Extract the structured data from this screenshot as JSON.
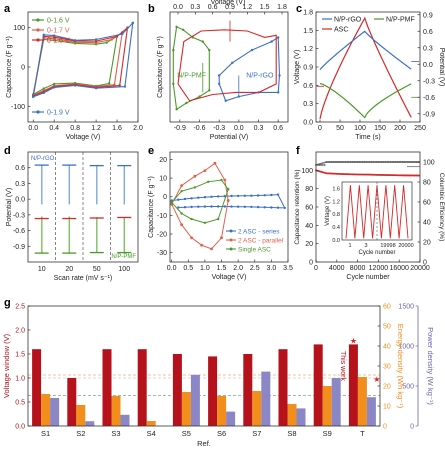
{
  "chart_data": [
    {
      "panel": "a",
      "type": "line",
      "xlabel": "Voltage (V)",
      "ylabel": "Capacitance (F g⁻¹)",
      "xlim": [
        -0.1,
        2.0
      ],
      "ylim": [
        -140,
        140
      ],
      "xticks": [
        0.0,
        0.4,
        0.8,
        1.2,
        1.6,
        2.0
      ],
      "yticks": [
        -100,
        0,
        100
      ],
      "legend": "top-left",
      "series": [
        {
          "name": "0-1.6 V",
          "color": "#4a9a2a",
          "vmax": 1.6,
          "upper": [
            [
              0,
              -70
            ],
            [
              0.2,
              -55
            ],
            [
              0.4,
              -43
            ],
            [
              0.8,
              -41
            ],
            [
              1.2,
              -48
            ],
            [
              1.45,
              -42
            ],
            [
              1.6,
              78
            ]
          ],
          "lower": [
            [
              1.6,
              78
            ],
            [
              1.4,
              62
            ],
            [
              1.2,
              58
            ],
            [
              0.8,
              60
            ],
            [
              0.4,
              68
            ],
            [
              0.2,
              70
            ],
            [
              0,
              -70
            ]
          ]
        },
        {
          "name": "0-1.7 V",
          "color": "#e0604a",
          "vmax": 1.7,
          "upper": [
            [
              0,
              -72
            ],
            [
              0.2,
              -60
            ],
            [
              0.4,
              -48
            ],
            [
              0.8,
              -43
            ],
            [
              1.2,
              -50
            ],
            [
              1.55,
              -45
            ],
            [
              1.7,
              88
            ]
          ],
          "lower": [
            [
              1.7,
              88
            ],
            [
              1.5,
              70
            ],
            [
              1.2,
              62
            ],
            [
              0.8,
              63
            ],
            [
              0.4,
              72
            ],
            [
              0.2,
              74
            ],
            [
              0,
              -72
            ]
          ]
        },
        {
          "name": "0-1.8 V",
          "color": "#d62828",
          "vmax": 1.8,
          "upper": [
            [
              0,
              -74
            ],
            [
              0.2,
              -63
            ],
            [
              0.4,
              -50
            ],
            [
              0.8,
              -45
            ],
            [
              1.2,
              -52
            ],
            [
              1.65,
              -47
            ],
            [
              1.8,
              100
            ]
          ],
          "lower": [
            [
              1.8,
              100
            ],
            [
              1.6,
              78
            ],
            [
              1.2,
              66
            ],
            [
              0.8,
              66
            ],
            [
              0.4,
              76
            ],
            [
              0.2,
              78
            ],
            [
              0,
              -74
            ]
          ]
        },
        {
          "name": "0-1.9 V",
          "color": "#3b6fc8",
          "vmax": 1.9,
          "upper": [
            [
              0,
              -76
            ],
            [
              0.2,
              -66
            ],
            [
              0.4,
              -52
            ],
            [
              0.8,
              -47
            ],
            [
              1.2,
              -54
            ],
            [
              1.75,
              -50
            ],
            [
              1.9,
              112
            ]
          ],
          "lower": [
            [
              1.9,
              112
            ],
            [
              1.7,
              84
            ],
            [
              1.2,
              70
            ],
            [
              0.8,
              68
            ],
            [
              0.4,
              80
            ],
            [
              0.2,
              82
            ],
            [
              0,
              -76
            ]
          ]
        }
      ]
    },
    {
      "panel": "b",
      "type": "line",
      "xlabel": "Potential (V)",
      "x2label": "Voltage (V)",
      "ylabel": "Capacitance (F g⁻¹)",
      "xlim": [
        -1.05,
        0.75
      ],
      "x2lim": [
        0,
        1.8
      ],
      "xticks": [
        -0.9,
        -0.6,
        -0.3,
        0.0,
        0.3,
        0.6
      ],
      "x2ticks": [
        0.0,
        0.3,
        0.6,
        0.9,
        1.2,
        1.5,
        1.8
      ],
      "annotations": [
        "N/P-PMF",
        "N/P-rGO"
      ],
      "series": [
        {
          "name": "N/P-PMF",
          "color": "#4a9a2a"
        },
        {
          "name": "N/P-rGO",
          "color": "#3b6fc8"
        },
        {
          "name": "ASC",
          "color": "#d62828"
        }
      ]
    },
    {
      "panel": "c",
      "type": "line",
      "xlabel": "Time (s)",
      "ylabel": "Voltage (V)",
      "y2label": "Potential (V)",
      "xlim": [
        -10,
        250
      ],
      "ylim": [
        0,
        1.8
      ],
      "y2lim": [
        -1.05,
        0.95
      ],
      "xticks": [
        0,
        50,
        100,
        150,
        200,
        250
      ],
      "yticks": [
        0,
        0.3,
        0.6,
        0.9,
        1.2,
        1.5,
        1.8
      ],
      "y2ticks": [
        -0.9,
        -0.6,
        -0.3,
        0.0,
        0.3,
        0.6,
        0.9
      ],
      "series": [
        {
          "name": "N/P-rGO",
          "color": "#3b6fc8"
        },
        {
          "name": "N/P-PMF",
          "color": "#4a9a2a"
        },
        {
          "name": "ASC",
          "color": "#d62828"
        }
      ]
    },
    {
      "panel": "d",
      "type": "scatter",
      "xlabel": "Scan rate (mV s⁻¹)",
      "ylabel": "Potential (V)",
      "categories": [
        "10",
        "20",
        "50",
        "100"
      ],
      "ylim": [
        -1.2,
        0.9
      ],
      "yticks": [
        -0.9,
        -0.6,
        -0.3,
        0.0,
        0.3,
        0.6
      ],
      "annotations": [
        "N/P-rGO",
        "N/P-PMF"
      ],
      "series": [
        {
          "name": "N/P-rGO",
          "color": "#3b6fc8",
          "top": [
            0.65,
            0.65,
            0.64,
            0.64
          ],
          "bottom": [
            -0.1,
            -0.1,
            -0.1,
            -0.1
          ]
        },
        {
          "name": "ASC",
          "color": "#d62828",
          "values": [
            -0.37,
            -0.37,
            -0.36,
            -0.35
          ]
        },
        {
          "name": "N/P-PMF",
          "color": "#4a9a2a",
          "top": [
            -0.33,
            -0.33,
            -0.34,
            -0.34
          ],
          "bottom": [
            -1.03,
            -1.03,
            -1.02,
            -1.02
          ]
        }
      ]
    },
    {
      "panel": "e",
      "type": "line",
      "xlabel": "Voltage (V)",
      "ylabel": "Capacitance (F g⁻¹)",
      "xlim": [
        -0.05,
        3.5
      ],
      "ylim": [
        -35,
        24
      ],
      "xticks": [
        0.0,
        0.5,
        1.0,
        1.5,
        2.0,
        2.5,
        3.0,
        3.5
      ],
      "yticks": [
        -30,
        -20,
        -10,
        0,
        10,
        20
      ],
      "legend": "bottom-right",
      "series": [
        {
          "name": "2 ASC - series",
          "color": "#3b6fc8"
        },
        {
          "name": "2 ASC - parallel",
          "color": "#e0604a"
        },
        {
          "name": "Single ASC",
          "color": "#4a9a2a"
        }
      ]
    },
    {
      "panel": "f",
      "type": "line",
      "xlabel": "Cycle number",
      "ylabel": "Capacitance retention (%)",
      "y2label": "Columbic Efficiency (%)",
      "xlim": [
        0,
        20000
      ],
      "ylim": [
        0,
        120
      ],
      "y2lim": [
        0,
        110
      ],
      "xticks": [
        0,
        2000,
        4000,
        6000,
        8000,
        10000,
        12000,
        14000,
        16000,
        18000,
        20000
      ],
      "yticks": [
        0,
        20,
        40,
        60,
        80,
        100
      ],
      "y2ticks": [
        0,
        20,
        40,
        60,
        80,
        100
      ],
      "series": [
        {
          "name": "Capacitance retention",
          "color": "#d62828",
          "values": [
            100,
            96.8,
            96.2,
            95.8,
            95.5,
            95.3,
            95.0,
            94.8,
            94.6,
            94.5,
            94.3
          ]
        },
        {
          "name": "Columbic Efficiency",
          "color": "#555555",
          "values": [
            97,
            100,
            100,
            100,
            100,
            100,
            100,
            100,
            100,
            100,
            100
          ]
        }
      ],
      "inset": {
        "xlabel": "Cycle number",
        "ylabel": "Voltage (V)",
        "xticks": [
          "1",
          "3",
          "19998",
          "20000"
        ],
        "yticks": [
          0,
          0.4,
          0.8,
          1.2,
          1.6
        ]
      }
    },
    {
      "panel": "g",
      "type": "bar",
      "categories": [
        "S1",
        "S2",
        "S3",
        "S4",
        "S5",
        "S6",
        "S7",
        "S8",
        "S9",
        "T"
      ],
      "xlabel": "Ref.",
      "ylabel": "Voltage window (V)",
      "ylim": [
        0,
        2.5
      ],
      "yticks": [
        0.0,
        0.5,
        1.0,
        1.5,
        2.0,
        2.5
      ],
      "y2label": "Energy density (Wh kg⁻¹)",
      "y2lim": [
        0,
        60
      ],
      "y2ticks": [
        0,
        10,
        20,
        30,
        40,
        50,
        60
      ],
      "y3label": "Power density (W kg⁻¹)",
      "y3lim": [
        0,
        1500
      ],
      "y3ticks": [
        0,
        500,
        1000,
        1500
      ],
      "annotation": "This work",
      "series": [
        {
          "name": "Voltage window",
          "axis": "left",
          "color": "#b5121b",
          "values": [
            1.6,
            1.0,
            1.6,
            1.6,
            1.5,
            1.45,
            1.5,
            1.6,
            1.7,
            1.7
          ]
        },
        {
          "name": "Energy density",
          "axis": "right1",
          "color": "#f28e1c",
          "values": [
            16,
            10.5,
            15,
            2.5,
            17,
            15,
            17.5,
            11,
            20,
            24.5
          ]
        },
        {
          "name": "Power density",
          "axis": "right2",
          "color": "#8b86c6",
          "values": [
            350,
            60,
            140,
            0,
            640,
            180,
            680,
            220,
            600,
            360
          ]
        }
      ],
      "reference_lines": {
        "voltage": 1.0,
        "energy": 25.5,
        "power": 380
      }
    }
  ]
}
